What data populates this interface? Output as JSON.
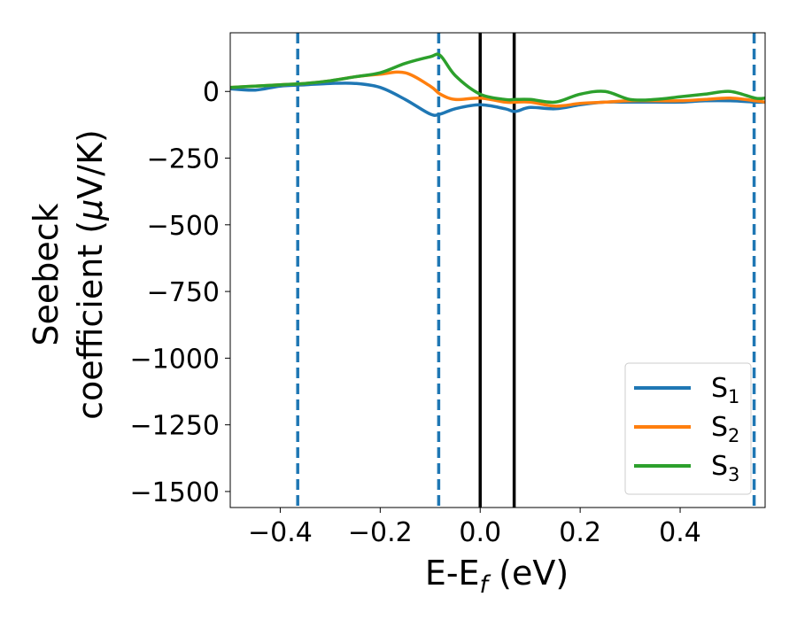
{
  "chart_data": {
    "type": "line",
    "xlabel": "E-E",
    "xlabel_sub": "f",
    "xlabel_unit": " (eV)",
    "ylabel_line1": "Seebeck",
    "ylabel_line2": "coefficient  (",
    "ylabel_mu": "μ",
    "ylabel_unit": "V/K)",
    "xlim": [
      -0.5,
      0.57
    ],
    "ylim": [
      -1560,
      220
    ],
    "xticks": [
      -0.4,
      -0.2,
      0.0,
      0.2,
      0.4
    ],
    "xtick_labels": [
      "−0.4",
      "−0.2",
      "0.0",
      "0.2",
      "0.4"
    ],
    "yticks": [
      0,
      -250,
      -500,
      -750,
      -1000,
      -1250,
      -1500
    ],
    "ytick_labels": [
      "0",
      "−250",
      "−500",
      "−750",
      "−1000",
      "−1250",
      "−1500"
    ],
    "grid": false,
    "legend_position": "bottom-right",
    "vlines": [
      {
        "x": -0.365,
        "style": "dashed",
        "color": "#1f77b4"
      },
      {
        "x": -0.083,
        "style": "dashed",
        "color": "#1f77b4"
      },
      {
        "x": 0.0,
        "style": "solid",
        "color": "#000000"
      },
      {
        "x": 0.068,
        "style": "solid",
        "color": "#000000"
      },
      {
        "x": 0.548,
        "style": "dashed",
        "color": "#1f77b4"
      }
    ],
    "x": [
      -0.5,
      -0.45,
      -0.4,
      -0.35,
      -0.3,
      -0.25,
      -0.2,
      -0.15,
      -0.1,
      -0.08,
      -0.05,
      0.0,
      0.05,
      0.07,
      0.1,
      0.15,
      0.2,
      0.25,
      0.3,
      0.35,
      0.4,
      0.45,
      0.5,
      0.55,
      0.57
    ],
    "series": [
      {
        "name": "S",
        "sub": "1",
        "color": "#1f77b4",
        "values": [
          10,
          5,
          20,
          25,
          30,
          30,
          15,
          -30,
          -85,
          -85,
          -65,
          -50,
          -65,
          -75,
          -60,
          -65,
          -50,
          -40,
          -40,
          -40,
          -40,
          -35,
          -35,
          -40,
          -40
        ]
      },
      {
        "name": "S",
        "sub": "2",
        "color": "#ff7f0e",
        "values": [
          15,
          20,
          25,
          30,
          40,
          55,
          65,
          70,
          20,
          -10,
          -30,
          -25,
          -40,
          -40,
          -40,
          -55,
          -45,
          -40,
          -35,
          -35,
          -35,
          -30,
          -25,
          -35,
          -40
        ]
      },
      {
        "name": "S",
        "sub": "3",
        "color": "#2ca02c",
        "values": [
          15,
          20,
          25,
          30,
          40,
          55,
          70,
          105,
          130,
          135,
          60,
          -10,
          -30,
          -30,
          -30,
          -40,
          -10,
          0,
          -30,
          -30,
          -20,
          -10,
          0,
          -25,
          -25
        ]
      }
    ]
  }
}
